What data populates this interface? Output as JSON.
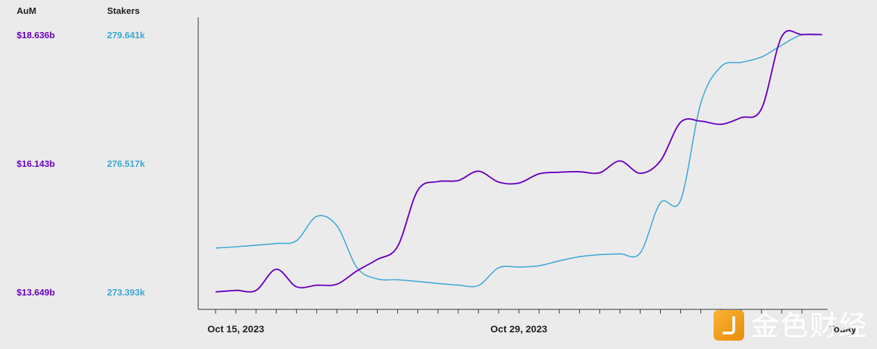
{
  "legend": {
    "aum_title": "AuM",
    "stakers_title": "Stakers"
  },
  "y_axes": {
    "aum_ticks": [
      "$18.636b",
      "$16.143b",
      "$13.649b"
    ],
    "stakers_ticks": [
      "279.641k",
      "276.517k",
      "273.393k"
    ]
  },
  "colors": {
    "aum": "#6a00c0",
    "stakers": "#3aa7d6",
    "background": "#ebebeb"
  },
  "watermark": {
    "text": "金色财经"
  },
  "chart_data": {
    "type": "line",
    "x_start": "2023-10-15",
    "x_end": "2023-11-14",
    "x_tick_labels": [
      {
        "date": "2023-10-15",
        "label": "Oct 15, 2023"
      },
      {
        "date": "2023-10-29",
        "label": "Oct 29, 2023"
      },
      {
        "date": "2023-11-14",
        "label": "Today"
      }
    ],
    "series": [
      {
        "name": "AuM",
        "axis": "left",
        "ylim": [
          13.649,
          18.636
        ],
        "x": [
          "2023-10-14",
          "2023-10-15",
          "2023-10-16",
          "2023-10-17",
          "2023-10-18",
          "2023-10-19",
          "2023-10-20",
          "2023-10-21",
          "2023-10-22",
          "2023-10-23",
          "2023-10-24",
          "2023-10-25",
          "2023-10-26",
          "2023-10-27",
          "2023-10-28",
          "2023-10-29",
          "2023-10-30",
          "2023-10-31",
          "2023-11-01",
          "2023-11-02",
          "2023-11-03",
          "2023-11-04",
          "2023-11-05",
          "2023-11-06",
          "2023-11-07",
          "2023-11-08",
          "2023-11-09",
          "2023-11-10",
          "2023-11-11",
          "2023-11-12",
          "2023-11-13"
        ],
        "values": [
          13.65,
          13.68,
          13.68,
          14.09,
          13.75,
          13.78,
          13.8,
          14.06,
          14.28,
          14.53,
          15.62,
          15.79,
          15.81,
          15.99,
          15.78,
          15.76,
          15.94,
          15.97,
          15.98,
          15.96,
          16.19,
          15.95,
          16.19,
          16.94,
          16.96,
          16.9,
          17.03,
          17.2,
          18.6,
          18.64,
          18.64
        ]
      },
      {
        "name": "Stakers",
        "axis": "right",
        "ylim": [
          273.393,
          279.641
        ],
        "x": [
          "2023-10-14",
          "2023-10-15",
          "2023-10-16",
          "2023-10-17",
          "2023-10-18",
          "2023-10-19",
          "2023-10-20",
          "2023-10-21",
          "2023-10-22",
          "2023-10-23",
          "2023-10-24",
          "2023-10-25",
          "2023-10-26",
          "2023-10-27",
          "2023-10-28",
          "2023-10-29",
          "2023-10-30",
          "2023-10-31",
          "2023-11-01",
          "2023-11-02",
          "2023-11-03",
          "2023-11-04",
          "2023-11-05",
          "2023-11-06",
          "2023-11-07",
          "2023-11-08",
          "2023-11-09",
          "2023-11-10",
          "2023-11-11",
          "2023-11-12",
          "2023-11-13"
        ],
        "values": [
          274.46,
          274.49,
          274.53,
          274.57,
          274.64,
          275.23,
          275.0,
          273.98,
          273.71,
          273.69,
          273.65,
          273.6,
          273.56,
          273.55,
          273.98,
          274.0,
          274.03,
          274.15,
          274.25,
          274.3,
          274.32,
          274.34,
          275.56,
          275.62,
          277.98,
          278.87,
          278.97,
          279.1,
          279.39,
          279.64,
          279.64
        ]
      }
    ],
    "grid": false,
    "legend": "top-left"
  }
}
